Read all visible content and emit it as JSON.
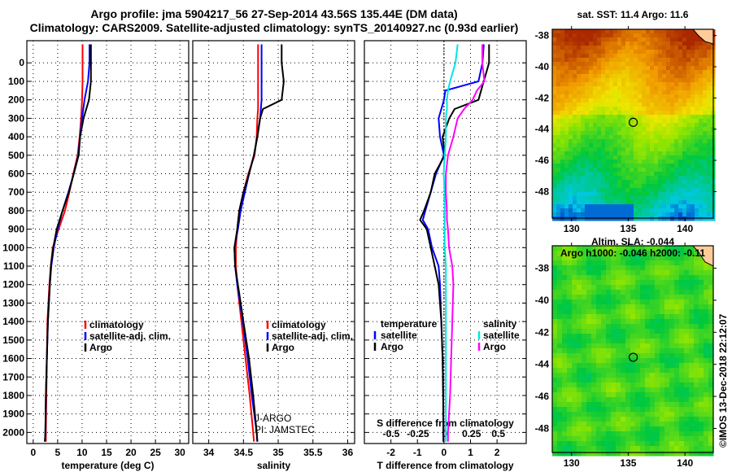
{
  "title_line1": "Argo profile: jma 5904217_56 27-Sep-2014 43.56S 135.44E (DM data)",
  "title_line2": "Climatology: CARS2009. Satellite-adjusted climatology: synTS_20140927.nc (0.93d earlier)",
  "credit": "©IMOS 13-Dec-2018 22:12:07",
  "colors": {
    "climatology": "#ff0000",
    "satellite": "#0000ff",
    "argo": "#000000",
    "sal_satellite": "#00e5e5",
    "sal_argo": "#ff00ff",
    "land": "#ffcc99"
  },
  "chart_data": [
    {
      "type": "line",
      "id": "temperature",
      "xlabel": "temperature (deg C)",
      "ylabel": "",
      "xlim": [
        -1.3,
        31.8
      ],
      "ylim": [
        2060,
        -120
      ],
      "xticks": [
        "0",
        "5",
        "10",
        "15",
        "20",
        "25",
        "30"
      ],
      "xtick_values": [
        0,
        5,
        10,
        15,
        20,
        25,
        30
      ],
      "yticks": [
        "0",
        "100",
        "200",
        "300",
        "400",
        "500",
        "600",
        "700",
        "800",
        "900",
        "1000",
        "1100",
        "1200",
        "1300",
        "1400",
        "1500",
        "1600",
        "1700",
        "1800",
        "1900",
        "2000"
      ],
      "depth": [
        -100,
        0,
        100,
        200,
        300,
        400,
        500,
        600,
        700,
        800,
        900,
        1000,
        1100,
        1200,
        1400,
        1600,
        1800,
        2000,
        2050
      ],
      "series": [
        {
          "name": "climatology",
          "color": "#ff0000",
          "values": [
            10.1,
            10.1,
            10.1,
            10.0,
            9.8,
            9.5,
            9.1,
            8.2,
            7.4,
            6.5,
            5.2,
            4.0,
            3.6,
            3.3,
            2.9,
            2.8,
            2.7,
            2.6,
            2.6
          ]
        },
        {
          "name": "satellite-adj. clim.",
          "color": "#0000ff",
          "values": [
            11.5,
            11.5,
            11.2,
            10.5,
            10.0,
            9.6,
            9.2,
            8.3,
            7.2,
            6.0,
            5.0,
            4.2,
            3.7,
            3.4,
            3.0,
            2.8,
            2.6,
            2.5,
            2.4
          ]
        },
        {
          "name": "Argo",
          "color": "#000000",
          "values": [
            11.8,
            11.8,
            11.8,
            11.4,
            10.3,
            9.6,
            9.3,
            8.3,
            7.3,
            6.0,
            4.8,
            4.1,
            3.6,
            3.4,
            3.0,
            2.8,
            2.6,
            2.5,
            2.4
          ]
        }
      ],
      "legend": [
        "climatology",
        "satellite-adj. clim.",
        "Argo"
      ]
    },
    {
      "type": "line",
      "id": "salinity",
      "xlabel": "salinity",
      "xlim": [
        33.77,
        36.1
      ],
      "ylim": [
        2060,
        -120
      ],
      "xticks": [
        "34",
        "34.5",
        "35",
        "35.5",
        "36"
      ],
      "xtick_values": [
        34,
        34.5,
        35,
        35.5,
        36
      ],
      "depth": [
        -100,
        0,
        100,
        200,
        250,
        300,
        400,
        500,
        600,
        700,
        800,
        900,
        1000,
        1100,
        1200,
        1400,
        1600,
        1800,
        2000,
        2050
      ],
      "series": [
        {
          "name": "climatology",
          "color": "#ff0000",
          "values": [
            34.71,
            34.71,
            34.71,
            34.71,
            34.71,
            34.7,
            34.69,
            34.66,
            34.57,
            34.5,
            34.44,
            34.41,
            34.39,
            34.39,
            34.41,
            34.47,
            34.53,
            34.59,
            34.64,
            34.65
          ]
        },
        {
          "name": "satellite-adj. clim.",
          "color": "#0000ff",
          "values": [
            34.76,
            34.76,
            34.76,
            34.76,
            34.75,
            34.74,
            34.7,
            34.65,
            34.58,
            34.52,
            34.46,
            34.42,
            34.37,
            34.38,
            34.41,
            34.49,
            34.56,
            34.62,
            34.69,
            34.7
          ]
        },
        {
          "name": "Argo",
          "color": "#000000",
          "values": [
            35.05,
            35.05,
            35.08,
            35.05,
            34.78,
            34.74,
            34.7,
            34.65,
            34.58,
            34.5,
            34.44,
            34.41,
            34.37,
            34.38,
            34.42,
            34.5,
            34.58,
            34.64,
            34.69,
            34.7
          ]
        }
      ],
      "legend": [
        "climatology",
        "satellite-adj. clim.",
        "Argo"
      ],
      "annotation": [
        "J-ARGO",
        "PI: JAMSTEC"
      ]
    },
    {
      "type": "line",
      "id": "difference",
      "xlabel": "T difference from climatology",
      "x2label": "S difference from climatology",
      "xlim": [
        -3.0,
        3.1
      ],
      "x2lim": [
        -0.75,
        0.76
      ],
      "ylim": [
        2060,
        -120
      ],
      "xticks": [
        "-2",
        "-1",
        "0",
        "1",
        "2"
      ],
      "xtick_values": [
        -2,
        -1,
        0,
        1,
        2
      ],
      "x2ticks": [
        "-0.5",
        "-0.25",
        "0",
        "0.25",
        "0.5"
      ],
      "x2tick_values": [
        -0.5,
        -0.25,
        0,
        0.25,
        0.5
      ],
      "depth": [
        -100,
        0,
        100,
        150,
        200,
        250,
        300,
        400,
        500,
        600,
        700,
        800,
        850,
        900,
        1000,
        1100,
        1200,
        1400,
        1600,
        1800,
        2000,
        2050
      ],
      "series": [
        {
          "name": "temperature satellite",
          "axis": "T",
          "color": "#0000ff",
          "values": [
            1.5,
            1.45,
            1.3,
            0.05,
            0.0,
            -0.1,
            -0.2,
            -0.15,
            0.0,
            -0.3,
            -0.5,
            -0.7,
            -0.8,
            -0.6,
            -0.45,
            -0.2,
            -0.15,
            -0.1,
            -0.05,
            -0.03,
            -0.02,
            -0.02
          ]
        },
        {
          "name": "temperature Argo",
          "axis": "T",
          "color": "#000000",
          "values": [
            1.7,
            1.7,
            1.5,
            1.4,
            1.3,
            0.4,
            0.2,
            -0.05,
            0.03,
            -0.35,
            -0.5,
            -0.75,
            -0.9,
            -0.65,
            -0.5,
            -0.35,
            -0.2,
            -0.1,
            -0.05,
            -0.03,
            -0.02,
            -0.02
          ]
        },
        {
          "name": "salinity satellite",
          "axis": "S",
          "color": "#00e5e5",
          "values": [
            0.12,
            0.1,
            0.05,
            0.03,
            0.02,
            0.02,
            0.01,
            0.01,
            0.0,
            -0.01,
            0.0,
            0.0,
            0.0,
            0.0,
            0.0,
            0.01,
            0.01,
            0.01,
            0.01,
            0.01,
            0.01,
            0.01
          ]
        },
        {
          "name": "salinity Argo",
          "axis": "S",
          "color": "#ff00ff",
          "values": [
            0.35,
            0.35,
            0.37,
            0.3,
            0.26,
            0.18,
            0.12,
            0.08,
            0.03,
            0.01,
            0.01,
            0.02,
            0.02,
            0.03,
            0.04,
            0.07,
            0.08,
            0.07,
            0.06,
            0.05,
            0.03,
            0.03
          ]
        }
      ],
      "legend_temperature": {
        "title": "temperature",
        "items": [
          "satellite",
          "Argo"
        ]
      },
      "legend_salinity": {
        "title": "salinity",
        "items": [
          "satellite",
          "Argo"
        ]
      }
    },
    {
      "type": "heatmap",
      "id": "sst-map",
      "title": "sat. SST: 11.4 Argo: 11.6",
      "xlim": [
        128.3,
        142.5
      ],
      "ylim": [
        -37.6,
        -49.7
      ],
      "xticks": [
        "130",
        "135",
        "140"
      ],
      "xtick_values": [
        130,
        135,
        140
      ],
      "yticks": [
        "-38",
        "-40",
        "-42",
        "-44",
        "-46",
        "-48"
      ],
      "ytick_values": [
        -38,
        -40,
        -42,
        -44,
        -46,
        -48
      ],
      "marker": {
        "lon": 135.44,
        "lat": -43.56
      }
    },
    {
      "type": "heatmap",
      "id": "sla-map",
      "title": "Altim. SLA: -0.044",
      "subtitle": "Argo h1000: -0.046 h2000: -0.11",
      "xlim": [
        128.3,
        142.5
      ],
      "ylim": [
        -36.6,
        -49.5
      ],
      "xticks": [
        "130",
        "135",
        "140"
      ],
      "xtick_values": [
        130,
        135,
        140
      ],
      "yticks": [
        "-38",
        "-40",
        "-42",
        "-44",
        "-46",
        "-48"
      ],
      "ytick_values": [
        -38,
        -40,
        -42,
        -44,
        -46,
        -48
      ],
      "marker": {
        "lon": 135.44,
        "lat": -43.56
      }
    }
  ]
}
